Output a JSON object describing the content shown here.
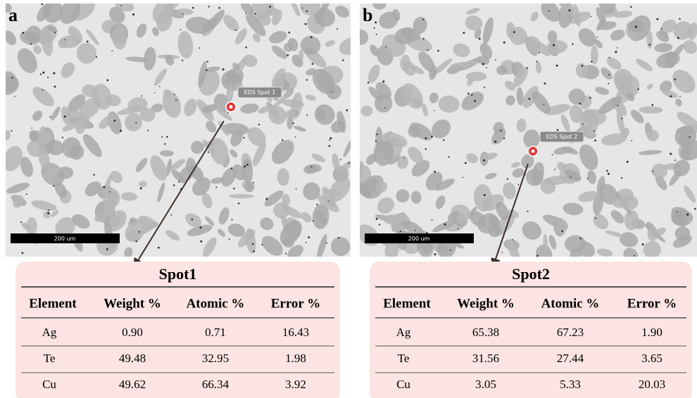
{
  "panels": [
    {
      "label": "a",
      "spot_label": "EDS Spot 1",
      "scale_bar": "200 um",
      "table": {
        "title": "Spot1",
        "header": [
          "Element",
          "Weight %",
          "Atomic %",
          "Error %"
        ],
        "rows": [
          [
            "Ag",
            "0.90",
            "0.71",
            "16.43"
          ],
          [
            "Te",
            "49.48",
            "32.95",
            "1.98"
          ],
          [
            "Cu",
            "49.62",
            "66.34",
            "3.92"
          ]
        ]
      }
    },
    {
      "label": "b",
      "spot_label": "EDS Spot 2",
      "scale_bar": "200 um",
      "table": {
        "title": "Spot2",
        "header": [
          "Element",
          "Weight %",
          "Atomic %",
          "Error %"
        ],
        "rows": [
          [
            "Ag",
            "65.38",
            "67.23",
            "1.90"
          ],
          [
            "Te",
            "31.56",
            "27.44",
            "3.65"
          ],
          [
            "Cu",
            "3.05",
            "5.33",
            "20.03"
          ]
        ]
      }
    }
  ]
}
